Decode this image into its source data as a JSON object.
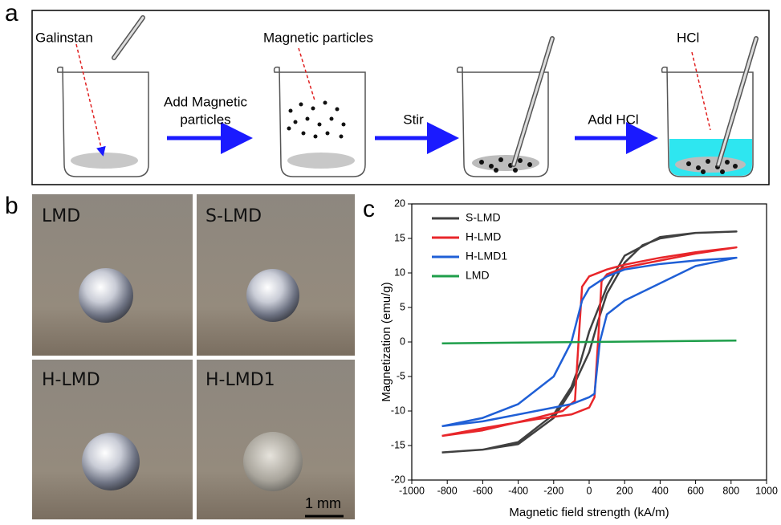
{
  "panel_a": {
    "label": "a",
    "labels": [
      "Galinstan",
      "Magnetic particles",
      "HCl"
    ],
    "arrows": [
      [
        "Add Magnetic",
        "particles"
      ],
      [
        "Stir"
      ],
      [
        "Add HCl"
      ]
    ]
  },
  "panel_b": {
    "label": "b",
    "images": [
      "LMD",
      "S-LMD",
      "H-LMD",
      "H-LMD1"
    ],
    "scale_bar": "1 mm"
  },
  "chart_data": {
    "type": "line",
    "panel_label": "c",
    "x_label": "Magnetic field strength (kA/m)",
    "y_label": "Magnetization (emu/g)",
    "xlim": [
      -1000,
      1000
    ],
    "ylim": [
      -20,
      20
    ],
    "xticks": [
      -1000,
      -800,
      -600,
      -400,
      -200,
      0,
      200,
      400,
      600,
      800,
      1000
    ],
    "yticks": [
      -20,
      -15,
      -10,
      -5,
      0,
      5,
      10,
      15,
      20
    ],
    "series": [
      {
        "name": "S-LMD",
        "color": "#404040",
        "x": [
          -830,
          -600,
          -400,
          -200,
          -100,
          0,
          50,
          100,
          200,
          300,
          400,
          600,
          830,
          600,
          400,
          200,
          100,
          0,
          -50,
          -100,
          -200,
          -400,
          -600,
          -830
        ],
        "values": [
          -16,
          -15.6,
          -14.8,
          -11,
          -7,
          -1.5,
          3,
          7,
          11.5,
          14,
          15,
          15.8,
          16,
          15.8,
          15.2,
          12.5,
          8,
          1.5,
          -3,
          -6.5,
          -10.5,
          -14.5,
          -15.6,
          -16
        ]
      },
      {
        "name": "H-LMD",
        "color": "#e8262a",
        "x": [
          -830,
          -600,
          -300,
          -100,
          0,
          30,
          50,
          70,
          100,
          200,
          400,
          600,
          830,
          600,
          400,
          200,
          100,
          0,
          -40,
          -60,
          -80,
          -150,
          -300,
          -600,
          -830
        ],
        "values": [
          -13.6,
          -12.5,
          -11.2,
          -10.5,
          -9.5,
          -8,
          0,
          8.8,
          9.8,
          10.8,
          11.8,
          12.8,
          13.7,
          13,
          12.2,
          11.2,
          10.5,
          9.5,
          8,
          0,
          -8.5,
          -10,
          -11,
          -12.8,
          -13.6
        ]
      },
      {
        "name": "H-LMD1",
        "color": "#1f5fd6",
        "x": [
          -830,
          -600,
          -300,
          -100,
          0,
          30,
          60,
          100,
          200,
          400,
          600,
          830,
          600,
          400,
          200,
          100,
          0,
          -40,
          -100,
          -200,
          -400,
          -600,
          -830
        ],
        "values": [
          -12.2,
          -11.5,
          -10,
          -9,
          -8,
          -7.5,
          0,
          4,
          6,
          8.5,
          11,
          12.2,
          11.8,
          11.3,
          10.5,
          9.5,
          7.8,
          6,
          0,
          -5,
          -9,
          -11,
          -12.2
        ]
      },
      {
        "name": "LMD",
        "color": "#1e9e4a",
        "x": [
          -830,
          830
        ],
        "values": [
          -0.2,
          0.2
        ]
      }
    ]
  }
}
